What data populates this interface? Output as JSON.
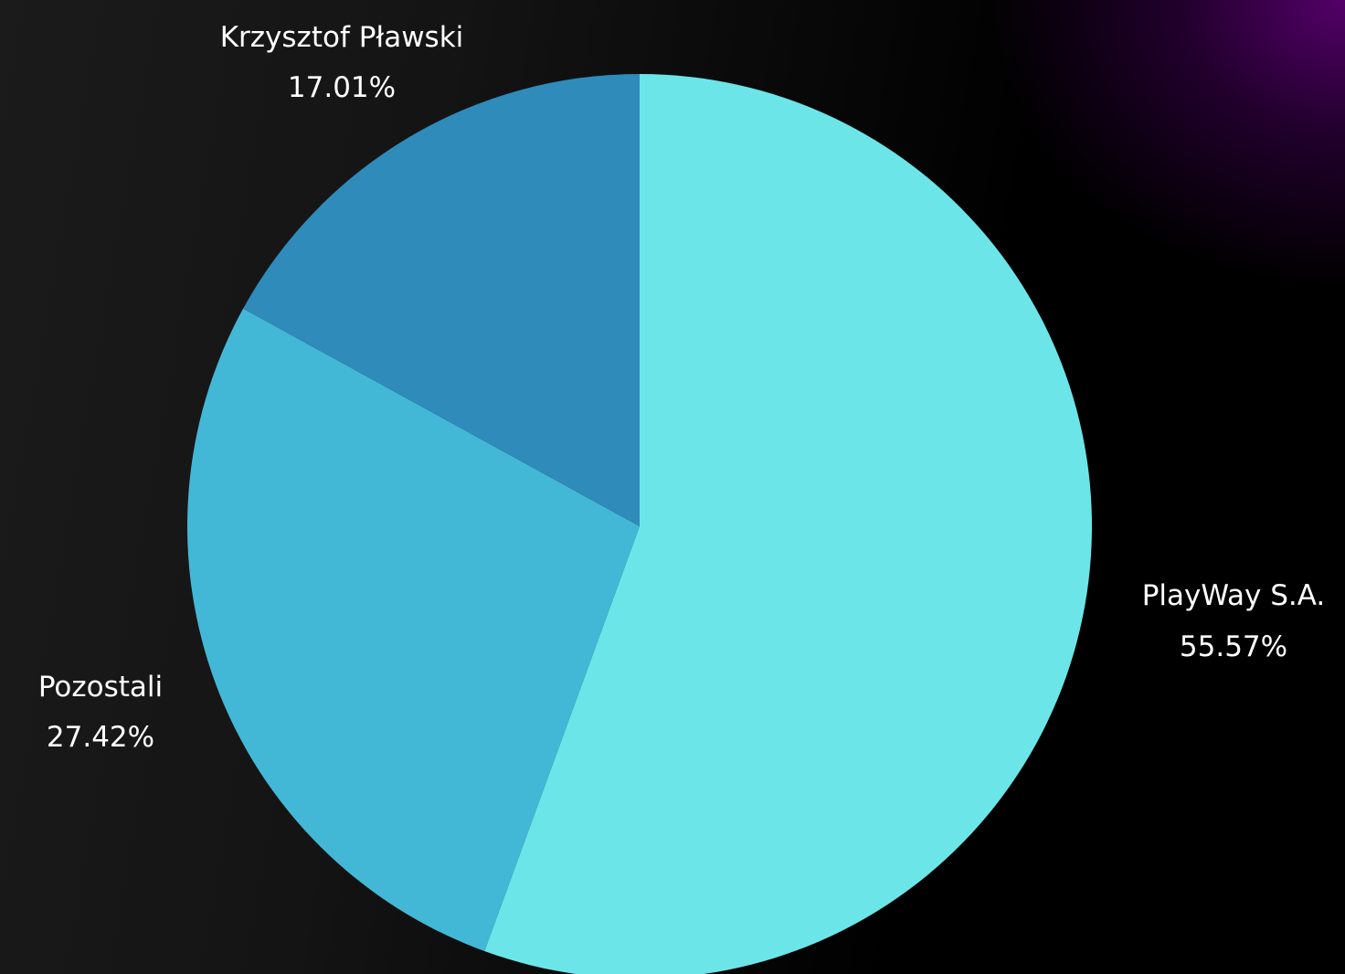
{
  "chart_data": {
    "type": "pie",
    "start": "12 o'clock, clockwise",
    "slices": [
      {
        "label": "PlayWay S.A.",
        "value": 55.57,
        "value_label": "55.57%",
        "color": "#6ce5e8"
      },
      {
        "label": "Pozostali",
        "value": 27.42,
        "value_label": "27.42%",
        "color": "#43b8d6"
      },
      {
        "label": "Krzysztof Pławski",
        "value": 17.01,
        "value_label": "17.01%",
        "color": "#2e8bba"
      }
    ]
  },
  "background": {
    "base": "#000000",
    "accent": "#4a0060"
  }
}
